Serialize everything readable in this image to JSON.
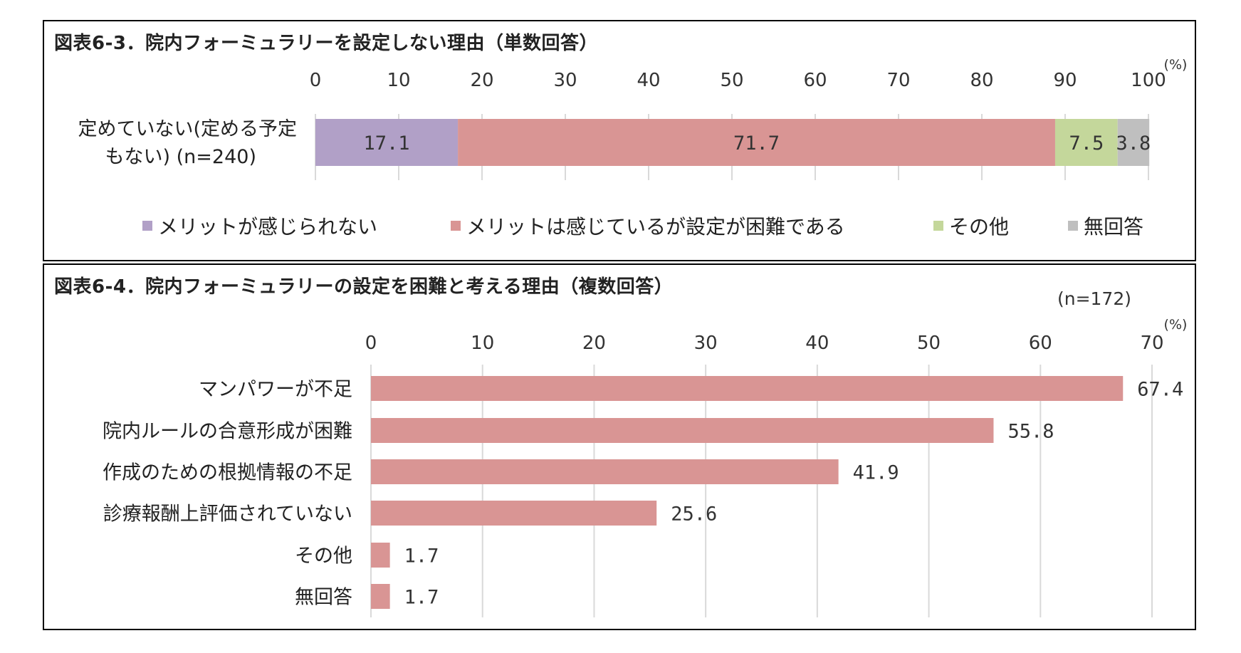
{
  "panel1": {
    "title": "図表6-3．院内フォーミュラリーを設定しない理由（単数回答）",
    "unit": "(%)",
    "chart_data": {
      "type": "bar",
      "stacked": true,
      "orientation": "horizontal",
      "title": "図表6-3．院内フォーミュラリーを設定しない理由（単数回答）",
      "categories": [
        "定めていない(定める予定もない) (n=240)"
      ],
      "category_lines": [
        "定めていない(定める予定",
        "もない)  (n=240)"
      ],
      "series": [
        {
          "name": "メリットが感じられない",
          "values": [
            17.1
          ],
          "label": "17.1",
          "color": "#b1a0c7"
        },
        {
          "name": "メリットは感じているが設定が困難である",
          "values": [
            71.7
          ],
          "label": "71.7",
          "color": "#d99594"
        },
        {
          "name": "その他",
          "values": [
            7.5
          ],
          "label": "7.5",
          "color": "#c4d79b"
        },
        {
          "name": "無回答",
          "values": [
            3.8
          ],
          "label": "3.8",
          "color": "#bfbfbf"
        }
      ],
      "xlim": [
        0,
        100
      ],
      "ticks": [
        "0",
        "10",
        "20",
        "30",
        "40",
        "50",
        "60",
        "70",
        "80",
        "90",
        "100"
      ],
      "grid": true,
      "legend": "bottom"
    }
  },
  "panel2": {
    "title": "図表6-4．院内フォーミュラリーの設定を困難と考える理由（複数回答）",
    "n_label": "(n=172)",
    "unit": "(%)",
    "chart_data": {
      "type": "bar",
      "orientation": "horizontal",
      "title": "図表6-4．院内フォーミュラリーの設定を困難と考える理由（複数回答）",
      "categories": [
        "マンパワーが不足",
        "院内ルールの合意形成が困難",
        "作成のための根拠情報の不足",
        "診療報酬上評価されていない",
        "その他",
        "無回答"
      ],
      "values": [
        67.4,
        55.8,
        41.9,
        25.6,
        1.7,
        1.7
      ],
      "labels": [
        "67.4",
        "55.8",
        "41.9",
        "25.6",
        "1.7",
        "1.7"
      ],
      "color": "#d99594",
      "xlim": [
        0,
        70
      ],
      "ticks": [
        "0",
        "10",
        "20",
        "30",
        "40",
        "50",
        "60",
        "70"
      ],
      "grid": true
    }
  }
}
